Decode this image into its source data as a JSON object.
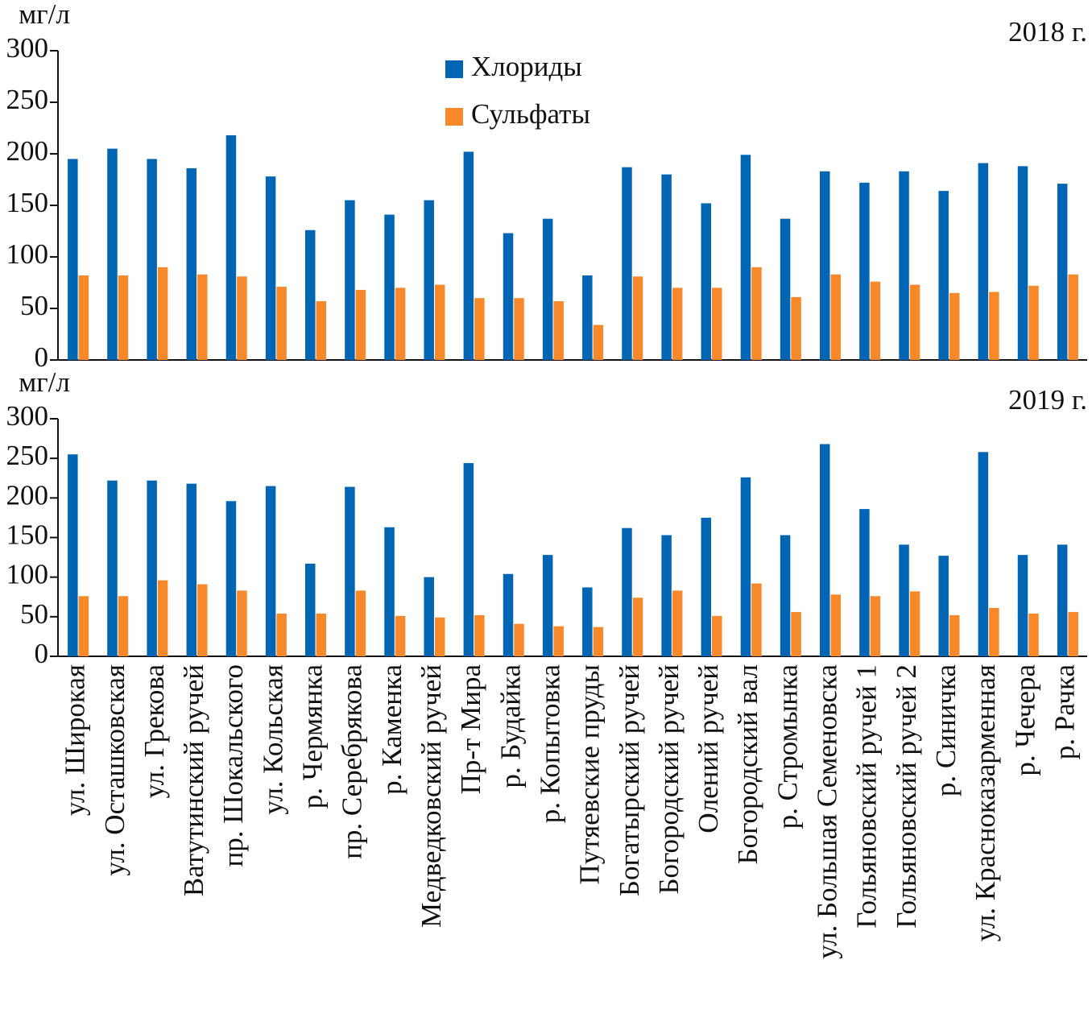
{
  "chart_data": [
    {
      "type": "bar",
      "title": "2018 г.",
      "ylabel": "мг/л",
      "ylim": [
        0,
        300
      ],
      "yticks": [
        0,
        50,
        100,
        150,
        200,
        250,
        300
      ],
      "grid": false,
      "legend": "upper center",
      "series": [
        {
          "name": "Хлориды",
          "color": "#0066b3",
          "values": [
            195,
            205,
            195,
            186,
            218,
            178,
            126,
            155,
            141,
            155,
            202,
            123,
            137,
            82,
            187,
            180,
            152,
            199,
            137,
            183,
            172,
            183,
            164,
            191,
            188,
            171
          ]
        },
        {
          "name": "Сульфаты",
          "color": "#f7892a",
          "values": [
            82,
            82,
            90,
            83,
            81,
            71,
            57,
            68,
            70,
            73,
            60,
            60,
            57,
            34,
            81,
            70,
            70,
            90,
            61,
            83,
            76,
            73,
            65,
            66,
            72,
            83
          ]
        }
      ]
    },
    {
      "type": "bar",
      "title": "2019 г.",
      "ylabel": "мг/л",
      "ylim": [
        0,
        300
      ],
      "yticks": [
        0,
        50,
        100,
        150,
        200,
        250,
        300
      ],
      "grid": false,
      "categories": [
        "ул. Широкая",
        "ул. Осташковская",
        "ул. Грекова",
        "Ватутинский ручей",
        "пр. Шокальского",
        "ул. Кольская",
        "р. Чермянка",
        "пр. Серебрякова",
        "р. Каменка",
        "Медведковский ручей",
        "Пр-т Мира",
        "р. Будайка",
        "р. Копытовка",
        "Путяевские пруды",
        "Богатырский ручей",
        "Богородский ручей",
        "Олений ручей",
        "Богородский вал",
        "р. Стромынка",
        "ул. Большая Семеновска",
        "Гольяновский ручей 1",
        "Гольяновский ручей 2",
        "р. Синичка",
        "ул. Красноказарменная",
        "р. Чечера",
        "р. Рачка"
      ],
      "series": [
        {
          "color": "#0066b3",
          "values": [
            255,
            222,
            222,
            218,
            196,
            215,
            117,
            214,
            163,
            100,
            244,
            104,
            128,
            87,
            162,
            153,
            175,
            226,
            153,
            268,
            186,
            141,
            127,
            258,
            128,
            141
          ]
        },
        {
          "color": "#f7892a",
          "values": [
            76,
            76,
            96,
            91,
            83,
            54,
            54,
            83,
            51,
            49,
            52,
            41,
            38,
            37,
            74,
            83,
            51,
            92,
            56,
            78,
            76,
            82,
            52,
            61,
            54,
            56
          ]
        }
      ]
    }
  ]
}
